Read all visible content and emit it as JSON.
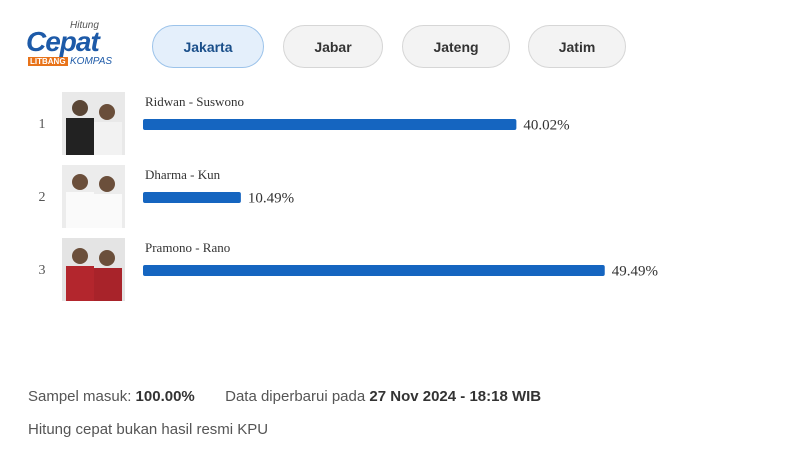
{
  "logo": {
    "top": "Hitung",
    "main": "Cepat",
    "sub1": "LITBANG",
    "sub2": "KOMPAS"
  },
  "tabs": [
    "Jakarta",
    "Jabar",
    "Jateng",
    "Jatim"
  ],
  "chart_data": {
    "type": "bar",
    "orientation": "horizontal",
    "color": "#1565c0",
    "ranks": [
      1,
      2,
      3
    ],
    "categories": [
      "Ridwan - Suswono",
      "Dharma - Kun",
      "Pramono - Rano"
    ],
    "values": [
      40.02,
      10.49,
      49.49
    ],
    "value_labels": [
      "40.02%",
      "10.49%",
      "49.49%"
    ]
  },
  "footer": {
    "sample_label": "Sampel masuk:",
    "sample_value": "100.00%",
    "updated_label": "Data diperbarui pada",
    "updated_value": "27 Nov 2024 - 18:18 WIB",
    "note": "Hitung cepat bukan hasil resmi KPU"
  }
}
